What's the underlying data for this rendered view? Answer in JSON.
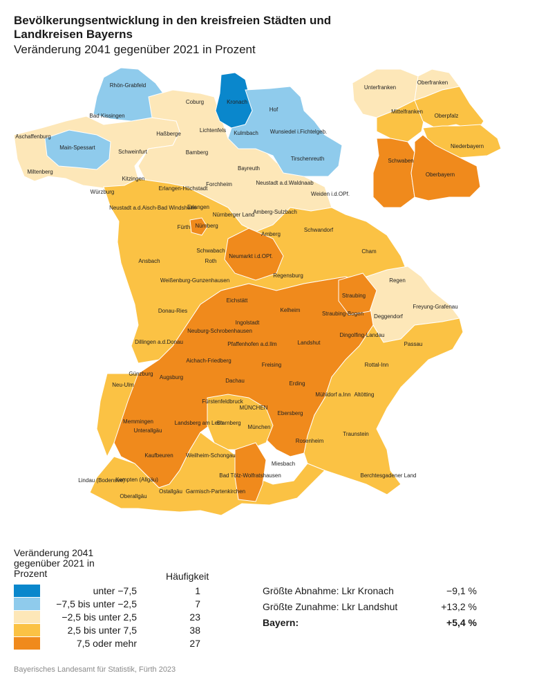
{
  "title": "Bevölkerungsentwicklung in den kreisfreien Städten und Landkreisen Bayerns",
  "subtitle": "Veränderung 2041 gegenüber 2021 in Prozent",
  "colors": {
    "class1": "#0a87cc",
    "class2": "#8fcbec",
    "class3": "#fde7b8",
    "class4": "#fbc244",
    "class5": "#f08a1c",
    "border": "#ffffff"
  },
  "legend": {
    "title": "Veränderung 2041 gegenüber 2021 in Prozent",
    "count_header": "Häufigkeit",
    "classes": [
      {
        "label": "unter −7,5",
        "count": "1"
      },
      {
        "label": "−7,5 bis unter −2,5",
        "count": "7"
      },
      {
        "label": "−2,5 bis unter 2,5",
        "count": "23"
      },
      {
        "label": "2,5 bis unter 7,5",
        "count": "38"
      },
      {
        "label": "7,5 oder mehr",
        "count": "27"
      }
    ]
  },
  "stats": {
    "decrease_label": "Größte Abnahme: Lkr Kronach",
    "decrease_value": "−9,1 %",
    "increase_label": "Größte Zunahme: Lkr Landshut",
    "increase_value": "+13,2 %",
    "bavaria_label": "Bayern:",
    "bavaria_value": "+5,4 %"
  },
  "source": "Bayerisches Landesamt für Statistik, Fürth 2023",
  "map": {
    "districts": [
      {
        "name": "Rhön-Grabfeld",
        "cls": 2
      },
      {
        "name": "Bad Kissingen",
        "cls": 3
      },
      {
        "name": "Coburg",
        "cls": 3
      },
      {
        "name": "Kronach",
        "cls": 1
      },
      {
        "name": "Hof",
        "cls": 2
      },
      {
        "name": "Kulmbach",
        "cls": 2
      },
      {
        "name": "Wunsiedel i.Fichtelgeb.",
        "cls": 2
      },
      {
        "name": "Tirschenreuth",
        "cls": 2
      },
      {
        "name": "Aschaffenburg",
        "cls": 3
      },
      {
        "name": "Main-Spessart",
        "cls": 2
      },
      {
        "name": "Miltenberg",
        "cls": 3
      },
      {
        "name": "Haßberge",
        "cls": 3
      },
      {
        "name": "Lichtenfels",
        "cls": 3
      },
      {
        "name": "Schweinfurt",
        "cls": 3
      },
      {
        "name": "Bamberg",
        "cls": 3
      },
      {
        "name": "Bayreuth",
        "cls": 3
      },
      {
        "name": "Neustadt a.d.Waldnaab",
        "cls": 3
      },
      {
        "name": "Weiden i.d.OPf.",
        "cls": 3
      },
      {
        "name": "Würzburg",
        "cls": 4
      },
      {
        "name": "Kitzingen",
        "cls": 4
      },
      {
        "name": "Erlangen-Höchstadt",
        "cls": 4
      },
      {
        "name": "Forchheim",
        "cls": 4
      },
      {
        "name": "Neustadt a.d.Aisch-Bad Windsheim",
        "cls": 4
      },
      {
        "name": "Erlangen",
        "cls": 4
      },
      {
        "name": "Nürnberger Land",
        "cls": 4
      },
      {
        "name": "Amberg-Sulzbach",
        "cls": 3
      },
      {
        "name": "Fürth",
        "cls": 3
      },
      {
        "name": "Nürnberg",
        "cls": 5
      },
      {
        "name": "Amberg",
        "cls": 3
      },
      {
        "name": "Schwandorf",
        "cls": 4
      },
      {
        "name": "Schwabach",
        "cls": 4
      },
      {
        "name": "Roth",
        "cls": 4
      },
      {
        "name": "Neumarkt i.d.OPf.",
        "cls": 5
      },
      {
        "name": "Cham",
        "cls": 4
      },
      {
        "name": "Ansbach",
        "cls": 4
      },
      {
        "name": "Regensburg",
        "cls": 4
      },
      {
        "name": "Regen",
        "cls": 3
      },
      {
        "name": "Weißenburg-Gunzenhausen",
        "cls": 4
      },
      {
        "name": "Eichstätt",
        "cls": 5
      },
      {
        "name": "Kelheim",
        "cls": 5
      },
      {
        "name": "Straubing",
        "cls": 5
      },
      {
        "name": "Freyung-Grafenau",
        "cls": 3
      },
      {
        "name": "Donau-Ries",
        "cls": 4
      },
      {
        "name": "Ingolstadt",
        "cls": 5
      },
      {
        "name": "Straubing-Bogen",
        "cls": 5
      },
      {
        "name": "Deggendorf",
        "cls": 3
      },
      {
        "name": "Neuburg-Schrobenhausen",
        "cls": 5
      },
      {
        "name": "Dingolfing-Landau",
        "cls": 5
      },
      {
        "name": "Dillingen a.d.Donau",
        "cls": 4
      },
      {
        "name": "Pfaffenhofen a.d.Ilm",
        "cls": 5
      },
      {
        "name": "Landshut",
        "cls": 5
      },
      {
        "name": "Passau",
        "cls": 4
      },
      {
        "name": "Aichach-Friedberg",
        "cls": 5
      },
      {
        "name": "Freising",
        "cls": 5
      },
      {
        "name": "Rottal-Inn",
        "cls": 4
      },
      {
        "name": "Günzburg",
        "cls": 5
      },
      {
        "name": "Augsburg",
        "cls": 5
      },
      {
        "name": "Dachau",
        "cls": 5
      },
      {
        "name": "Neu-Ulm",
        "cls": 4
      },
      {
        "name": "Erding",
        "cls": 5
      },
      {
        "name": "Mühldorf a.Inn",
        "cls": 5
      },
      {
        "name": "Altötting",
        "cls": 4
      },
      {
        "name": "Fürstenfeldbruck",
        "cls": 4
      },
      {
        "name": "MÜNCHEN",
        "cls": 4
      },
      {
        "name": "Memmingen",
        "cls": 5
      },
      {
        "name": "Unterallgäu",
        "cls": 5
      },
      {
        "name": "Landsberg am Lech",
        "cls": 5
      },
      {
        "name": "Starnberg",
        "cls": 4
      },
      {
        "name": "München",
        "cls": 4
      },
      {
        "name": "Ebersberg",
        "cls": 5
      },
      {
        "name": "Traunstein",
        "cls": 4
      },
      {
        "name": "Rosenheim",
        "cls": 5
      },
      {
        "name": "Kaufbeuren",
        "cls": 5
      },
      {
        "name": "Weilheim-Schongau",
        "cls": 4
      },
      {
        "name": "Miesbach",
        "cls": 4
      },
      {
        "name": "Lindau (Bodensee)",
        "cls": 4
      },
      {
        "name": "Kempten (Allgäu)",
        "cls": 4
      },
      {
        "name": "Bad Tölz-Wolfratshausen",
        "cls": 5
      },
      {
        "name": "Berchtesgadener Land",
        "cls": 4
      },
      {
        "name": "Oberallgäu",
        "cls": 4
      },
      {
        "name": "Ostallgäu",
        "cls": 5
      },
      {
        "name": "Garmisch-Partenkirchen",
        "cls": 4
      }
    ],
    "regions": [
      {
        "name": "Unterfranken",
        "cls": 3
      },
      {
        "name": "Oberfranken",
        "cls": 3
      },
      {
        "name": "Mittelfranken",
        "cls": 4
      },
      {
        "name": "Oberpfalz",
        "cls": 4
      },
      {
        "name": "Niederbayern",
        "cls": 4
      },
      {
        "name": "Schwaben",
        "cls": 5
      },
      {
        "name": "Oberbayern",
        "cls": 5
      }
    ]
  }
}
